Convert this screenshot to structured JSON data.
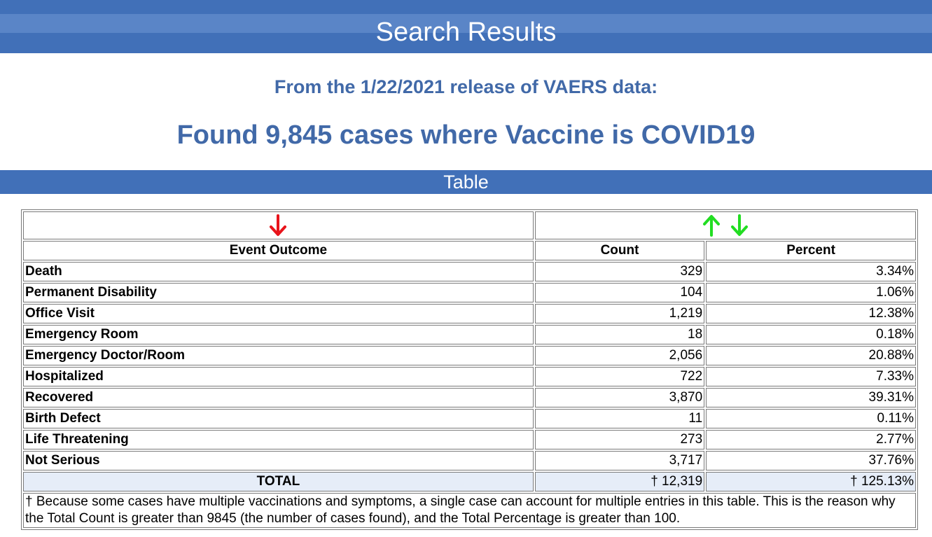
{
  "header": {
    "title": "Search Results"
  },
  "summary": {
    "release_line": "From the 1/22/2021 release of VAERS data:",
    "found_line": "Found 9,845 cases where Vaccine is COVID19"
  },
  "section": {
    "table_title": "Table"
  },
  "table": {
    "headers": {
      "outcome": "Event Outcome",
      "count": "Count",
      "percent": "Percent"
    },
    "rows": [
      {
        "outcome": "Death",
        "count": "329",
        "percent": "3.34%"
      },
      {
        "outcome": "Permanent Disability",
        "count": "104",
        "percent": "1.06%"
      },
      {
        "outcome": "Office Visit",
        "count": "1,219",
        "percent": "12.38%"
      },
      {
        "outcome": "Emergency Room",
        "count": "18",
        "percent": "0.18%"
      },
      {
        "outcome": "Emergency Doctor/Room",
        "count": "2,056",
        "percent": "20.88%"
      },
      {
        "outcome": "Hospitalized",
        "count": "722",
        "percent": "7.33%"
      },
      {
        "outcome": "Recovered",
        "count": "3,870",
        "percent": "39.31%"
      },
      {
        "outcome": "Birth Defect",
        "count": "11",
        "percent": "0.11%"
      },
      {
        "outcome": "Life Threatening",
        "count": "273",
        "percent": "2.77%"
      },
      {
        "outcome": "Not Serious",
        "count": "3,717",
        "percent": "37.76%"
      }
    ],
    "total": {
      "label": "TOTAL",
      "count": "† 12,319",
      "percent": "† 125.13%"
    },
    "footnote": "† Because some cases have multiple vaccinations and symptoms, a single case can account for multiple entries in this table. This is the reason why the Total Count is greater than 9845 (the number of cases found), and the Total Percentage is greater than 100."
  },
  "colors": {
    "header_bg": "#4170b8",
    "heading_text": "#4169a8",
    "sort_active": "#e8141b",
    "sort_inactive": "#22dd22",
    "total_row_bg": "#e6edf8"
  },
  "icons": {
    "outcome_sort": "sort-down-arrow-icon",
    "count_sort_asc": "sort-up-arrow-icon",
    "count_sort_desc": "sort-down-arrow-icon"
  }
}
